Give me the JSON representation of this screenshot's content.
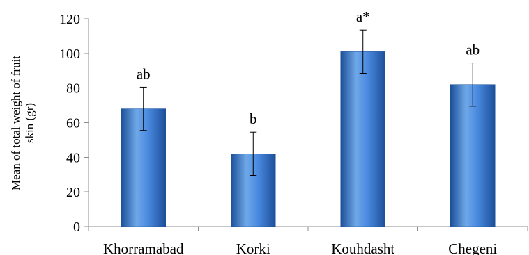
{
  "chart_data": {
    "type": "bar",
    "title": "",
    "xlabel": "",
    "ylabel_lines": [
      "Mean of total weight of fruit",
      "skin (gr)"
    ],
    "categories": [
      "Khorramabad",
      "Korki",
      "Kouhdasht",
      "Chegeni"
    ],
    "values": [
      68,
      42,
      101,
      82
    ],
    "errors": [
      12.5,
      12.5,
      12.5,
      12.5
    ],
    "significance_labels": [
      "ab",
      "b",
      "a*",
      "ab"
    ],
    "ylim": [
      0,
      120
    ],
    "yticks": [
      0,
      20,
      40,
      60,
      80,
      100,
      120
    ],
    "grid": false,
    "legend": "none",
    "colors": {
      "bar_light": "#6fa8e8",
      "bar_mid": "#3d7fd6",
      "bar_dark": "#1c4f99",
      "axis": "#8c8c8c",
      "error_bar": "#000000"
    }
  }
}
